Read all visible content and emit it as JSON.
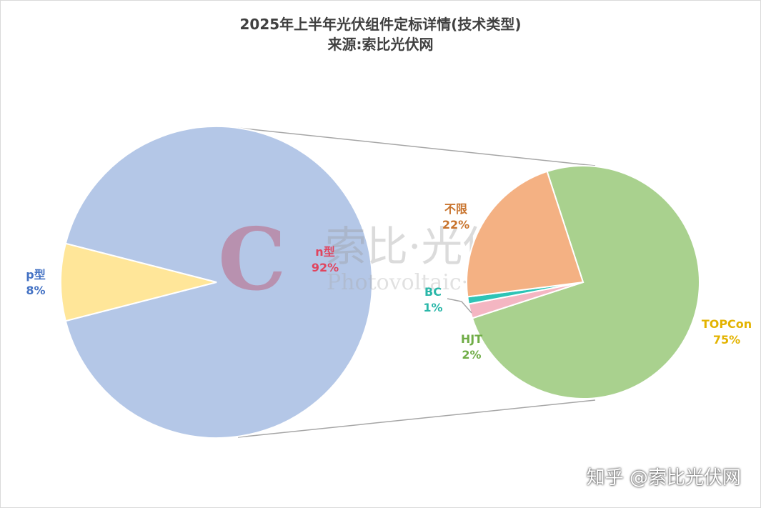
{
  "chart_data": {
    "type": "pie-of-pie",
    "title": "2025年上半年光伏组件定标详情(技术类型)",
    "subtitle": "来源:索比光伏网",
    "primary": {
      "slices": [
        {
          "label": "p型",
          "value": 8,
          "percent": "8%",
          "color": "#FFE699",
          "label_color": "#4472C4"
        },
        {
          "label": "n型",
          "value": 92,
          "percent": "92%",
          "color": "#B4C7E7",
          "label_color": "#E0445E"
        }
      ]
    },
    "secondary": {
      "parent": "n型",
      "slices": [
        {
          "label": "TOPCon",
          "value": 75,
          "percent": "75%",
          "color": "#A9D18E",
          "label_color": "#E3B300"
        },
        {
          "label": "HJT",
          "value": 2,
          "percent": "2%",
          "color": "#F4B6C2",
          "label_color": "#70AD47"
        },
        {
          "label": "BC",
          "value": 1,
          "percent": "1%",
          "color": "#2EC4B6",
          "label_color": "#2AB7A9"
        },
        {
          "label": "不限",
          "value": 22,
          "percent": "22%",
          "color": "#F4B183",
          "label_color": "#C8742E"
        }
      ]
    },
    "watermark_logo": "索比·光伏 Photovoltaic·Solarbe"
  },
  "watermark": "知乎 @索比光伏网"
}
